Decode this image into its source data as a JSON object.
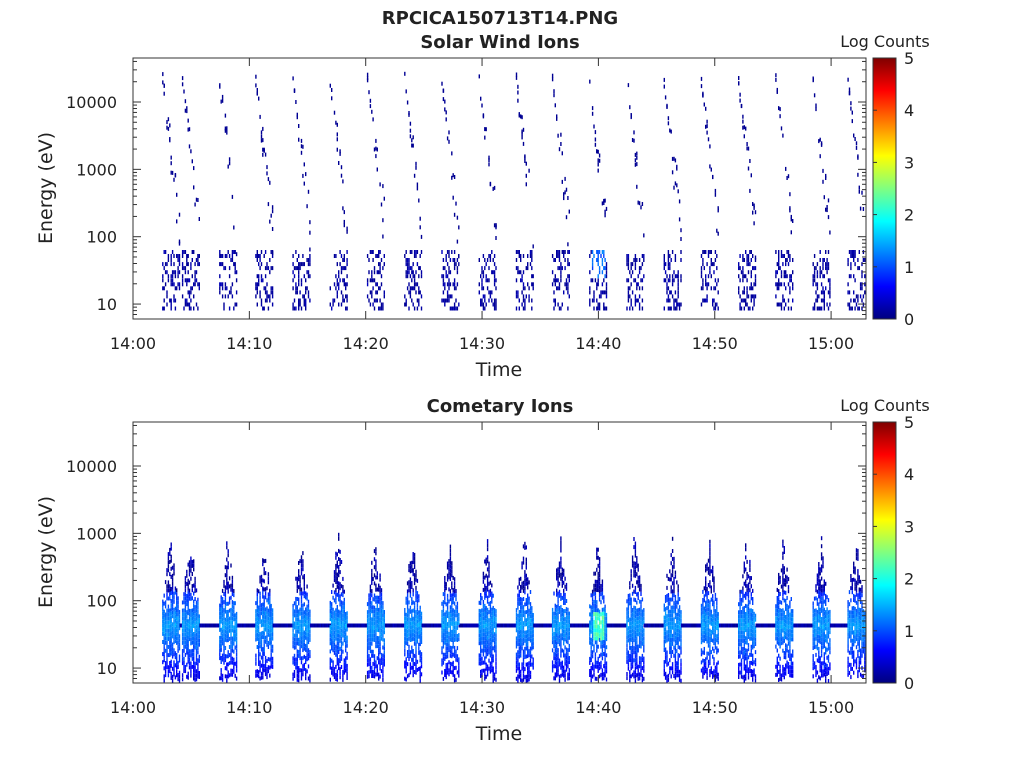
{
  "figure": {
    "title": "RPCICA150713T14.PNG"
  },
  "colors": {
    "colormap": [
      "#00007f",
      "#0000ff",
      "#0080ff",
      "#00ffff",
      "#80ff80",
      "#ffff00",
      "#ff8000",
      "#ff0000",
      "#7f0000"
    ],
    "axis": "#333333"
  },
  "chart_data": [
    {
      "type": "heatmap",
      "title": "Solar Wind Ions",
      "xlabel": "Time",
      "ylabel": "Energy (eV)",
      "colorbar_label": "Log Counts",
      "yscale": "log",
      "xlim": [
        "14:00",
        "15:03"
      ],
      "ylim": [
        6,
        45000
      ],
      "x_ticks": [
        "14:00",
        "14:10",
        "14:20",
        "14:30",
        "14:40",
        "14:50",
        "15:00"
      ],
      "y_ticks": [
        10,
        100,
        1000,
        10000
      ],
      "y_tick_labels": [
        "10",
        "100",
        "1000",
        "10000"
      ],
      "clim": [
        0,
        5
      ],
      "colorbar_ticks": [
        "0",
        "1",
        "2",
        "3",
        "4",
        "5"
      ],
      "scan_start_minutes": [
        2.5,
        4.2,
        7.4,
        10.5,
        13.7,
        16.9,
        20.1,
        23.3,
        26.5,
        29.7,
        32.9,
        36.0,
        39.2,
        42.4,
        45.6,
        48.8,
        52.0,
        55.2,
        58.4,
        61.4
      ],
      "counts_summary": {
        "low_energy_band_eV": [
          8,
          60
        ],
        "high_energy_scatter_eV": [
          100,
          20000
        ],
        "typical_log_counts": 0.1,
        "max_log_counts": 1.3,
        "max_at": {
          "time": "14:40",
          "energy_eV": 40
        }
      }
    },
    {
      "type": "heatmap",
      "title": "Cometary Ions",
      "xlabel": "Time",
      "ylabel": "Energy (eV)",
      "colorbar_label": "Log Counts",
      "yscale": "log",
      "xlim": [
        "14:00",
        "15:03"
      ],
      "ylim": [
        6,
        45000
      ],
      "x_ticks": [
        "14:00",
        "14:10",
        "14:20",
        "14:30",
        "14:40",
        "14:50",
        "15:00"
      ],
      "y_ticks": [
        10,
        100,
        1000,
        10000
      ],
      "y_tick_labels": [
        "10",
        "100",
        "1000",
        "10000"
      ],
      "clim": [
        0,
        5
      ],
      "colorbar_ticks": [
        "0",
        "1",
        "2",
        "3",
        "4",
        "5"
      ],
      "scan_start_minutes": [
        2.5,
        4.2,
        7.4,
        10.5,
        13.7,
        16.9,
        20.1,
        23.3,
        26.5,
        29.7,
        32.9,
        36.0,
        39.2,
        42.4,
        45.6,
        48.8,
        52.0,
        55.2,
        58.4,
        61.4
      ],
      "counts_summary": {
        "band_eV": [
          6,
          800
        ],
        "peak_energy_eV": 40,
        "typical_log_counts": 1.3,
        "max_log_counts": 2.5,
        "max_at": {
          "time": "14:40",
          "energy_eV": 35
        }
      }
    }
  ]
}
